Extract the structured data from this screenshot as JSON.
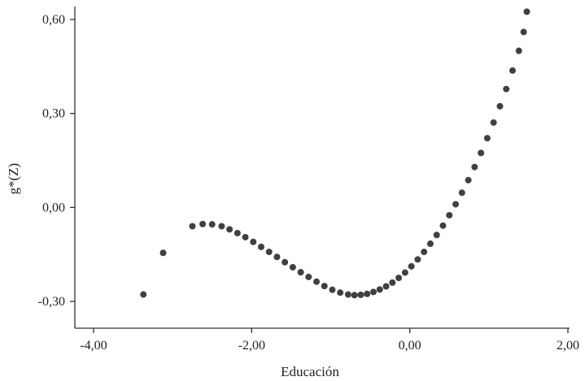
{
  "chart_data": {
    "type": "scatter",
    "title": "",
    "xlabel": "Educación",
    "ylabel": "g*(Z)",
    "xlim": [
      -4.2,
      2.0
    ],
    "ylim": [
      -0.38,
      0.64
    ],
    "x_ticks": [
      -4.0,
      -2.0,
      0.0,
      2.0
    ],
    "x_tick_labels": [
      "-4,00",
      "-2,00",
      "0,00",
      "2,00"
    ],
    "y_ticks": [
      -0.3,
      0.0,
      0.3,
      0.6
    ],
    "y_tick_labels": [
      "-0,30",
      "0,00",
      "0,30",
      "0,60"
    ],
    "grid": false,
    "legend": "none",
    "point_color": "#404040",
    "series": [
      {
        "points": [
          [
            -3.37,
            -0.278
          ],
          [
            -3.12,
            -0.145
          ],
          [
            -2.75,
            -0.06
          ],
          [
            -2.62,
            -0.053
          ],
          [
            -2.5,
            -0.054
          ],
          [
            -2.38,
            -0.06
          ],
          [
            -2.28,
            -0.07
          ],
          [
            -2.18,
            -0.082
          ],
          [
            -2.08,
            -0.095
          ],
          [
            -1.98,
            -0.11
          ],
          [
            -1.88,
            -0.126
          ],
          [
            -1.78,
            -0.142
          ],
          [
            -1.68,
            -0.158
          ],
          [
            -1.58,
            -0.175
          ],
          [
            -1.48,
            -0.191
          ],
          [
            -1.38,
            -0.207
          ],
          [
            -1.28,
            -0.222
          ],
          [
            -1.18,
            -0.237
          ],
          [
            -1.08,
            -0.251
          ],
          [
            -0.98,
            -0.263
          ],
          [
            -0.88,
            -0.272
          ],
          [
            -0.78,
            -0.278
          ],
          [
            -0.7,
            -0.28
          ],
          [
            -0.62,
            -0.279
          ],
          [
            -0.54,
            -0.276
          ],
          [
            -0.46,
            -0.27
          ],
          [
            -0.38,
            -0.262
          ],
          [
            -0.3,
            -0.252
          ],
          [
            -0.22,
            -0.24
          ],
          [
            -0.14,
            -0.225
          ],
          [
            -0.06,
            -0.208
          ],
          [
            0.02,
            -0.188
          ],
          [
            0.1,
            -0.166
          ],
          [
            0.18,
            -0.142
          ],
          [
            0.26,
            -0.116
          ],
          [
            0.34,
            -0.088
          ],
          [
            0.42,
            -0.058
          ],
          [
            0.5,
            -0.025
          ],
          [
            0.58,
            0.01
          ],
          [
            0.66,
            0.047
          ],
          [
            0.74,
            0.087
          ],
          [
            0.82,
            0.129
          ],
          [
            0.9,
            0.174
          ],
          [
            0.98,
            0.221
          ],
          [
            1.06,
            0.271
          ],
          [
            1.14,
            0.323
          ],
          [
            1.22,
            0.378
          ],
          [
            1.3,
            0.437
          ],
          [
            1.38,
            0.5
          ],
          [
            1.44,
            0.56
          ],
          [
            1.48,
            0.625
          ]
        ]
      }
    ]
  }
}
